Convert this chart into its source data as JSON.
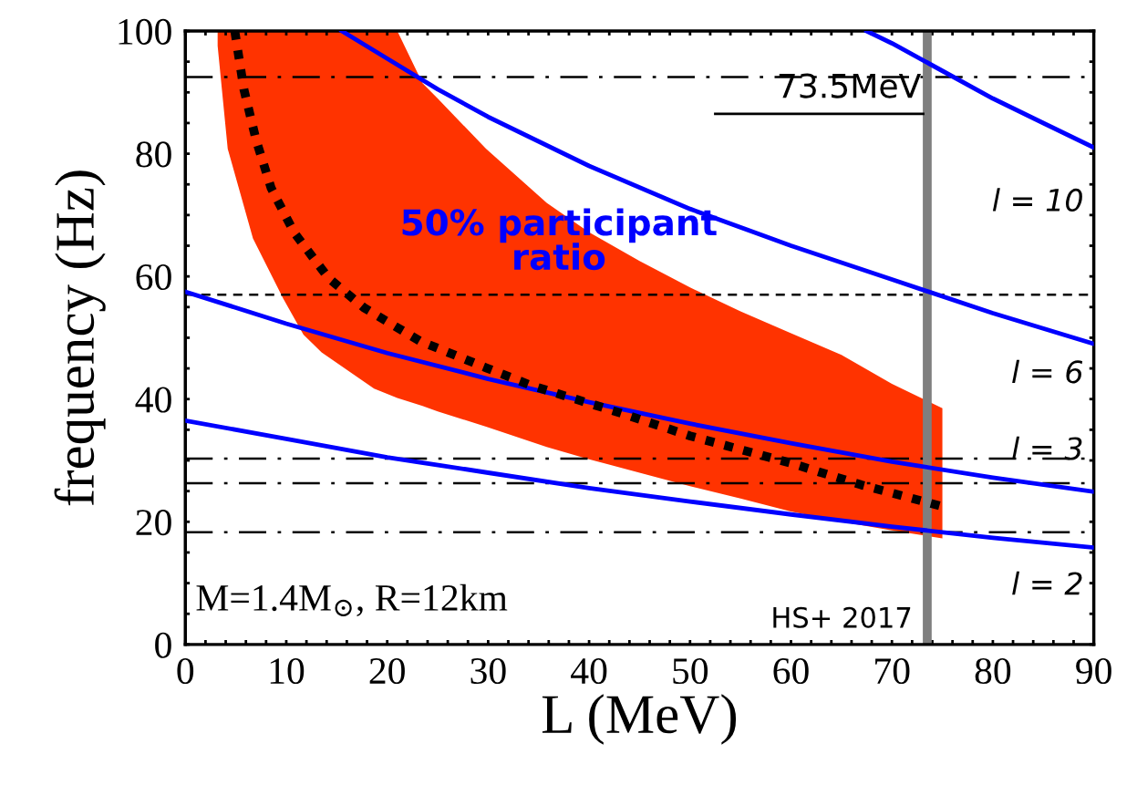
{
  "chart_data": {
    "type": "line",
    "xlabel": "L (MeV)",
    "ylabel": "frequency (Hz)",
    "xlim": [
      0,
      90
    ],
    "ylim": [
      0,
      100
    ],
    "xticks": [
      0,
      {
        "value": 2,
        "label": null
      },
      {
        "value": 4,
        "label": null
      },
      {
        "value": 6,
        "label": null
      },
      {
        "value": 8,
        "label": null
      },
      10,
      {
        "value": 12,
        "label": null
      },
      {
        "value": 14,
        "label": null
      },
      {
        "value": 16,
        "label": null
      },
      {
        "value": 18,
        "label": null
      },
      20,
      {
        "value": 22,
        "label": null
      },
      {
        "value": 24,
        "label": null
      },
      {
        "value": 26,
        "label": null
      },
      {
        "value": 28,
        "label": null
      },
      30,
      {
        "value": 32,
        "label": null
      },
      {
        "value": 34,
        "label": null
      },
      {
        "value": 36,
        "label": null
      },
      {
        "value": 38,
        "label": null
      },
      40,
      {
        "value": 42,
        "label": null
      },
      {
        "value": 44,
        "label": null
      },
      {
        "value": 46,
        "label": null
      },
      {
        "value": 48,
        "label": null
      },
      50,
      {
        "value": 52,
        "label": null
      },
      {
        "value": 54,
        "label": null
      },
      {
        "value": 56,
        "label": null
      },
      {
        "value": 58,
        "label": null
      },
      60,
      {
        "value": 62,
        "label": null
      },
      {
        "value": 64,
        "label": null
      },
      {
        "value": 66,
        "label": null
      },
      {
        "value": 68,
        "label": null
      },
      70,
      {
        "value": 72,
        "label": null
      },
      {
        "value": 74,
        "label": null
      },
      {
        "value": 76,
        "label": null
      },
      {
        "value": 78,
        "label": null
      },
      80,
      {
        "value": 82,
        "label": null
      },
      {
        "value": 84,
        "label": null
      },
      {
        "value": 86,
        "label": null
      },
      {
        "value": 88,
        "label": null
      },
      90
    ],
    "yticks": [
      0,
      {
        "value": 5,
        "label": null
      },
      {
        "value": 10,
        "label": null
      },
      {
        "value": 15,
        "label": null
      },
      20,
      {
        "value": 25,
        "label": null
      },
      {
        "value": 30,
        "label": null
      },
      {
        "value": 35,
        "label": null
      },
      40,
      {
        "value": 45,
        "label": null
      },
      {
        "value": 50,
        "label": null
      },
      {
        "value": 55,
        "label": null
      },
      60,
      {
        "value": 65,
        "label": null
      },
      {
        "value": 70,
        "label": null
      },
      {
        "value": 75,
        "label": null
      },
      80,
      {
        "value": 85,
        "label": null
      },
      {
        "value": 90,
        "label": null
      },
      {
        "value": 95,
        "label": null
      },
      100
    ],
    "series": [
      {
        "type": "line",
        "color": "#ff3300",
        "x": [
          3.2,
          4.2,
          6.7,
          9.7,
          11.7,
          13.5,
          18.7,
          21,
          23.5,
          25,
          29.8,
          35.8,
          40,
          45,
          50,
          55,
          59.9,
          65,
          70,
          75
        ],
        "values": [
          null,
          null,
          null,
          null,
          null,
          null,
          null,
          null,
          null,
          null,
          null,
          null,
          null,
          null,
          null,
          null,
          null,
          null,
          null,
          null
        ],
        "lower": [
          97.6,
          80.8,
          66.2,
          56.4,
          50.5,
          47.6,
          41.7,
          40.2,
          38.9,
          38,
          35.5,
          32.2,
          30.2,
          28,
          25.8,
          23.8,
          21.7,
          20,
          18.6,
          17.3
        ],
        "upper": [
          100,
          100,
          100,
          100,
          100,
          100,
          100,
          100,
          91.5,
          89,
          80.8,
          72,
          67.2,
          62.5,
          58.2,
          54.3,
          50.8,
          47.2,
          42.5,
          38.5
        ]
      },
      {
        "color": "#000000",
        "line_style": "dotted",
        "x": [
          4.9,
          5.8,
          7,
          8.5,
          10.8,
          14.2,
          17.7,
          23.2,
          29.8,
          34.3,
          43,
          50,
          59.9,
          67,
          75
        ],
        "values": [
          100,
          90.5,
          82.3,
          74.4,
          67.1,
          59.7,
          54.9,
          49.5,
          45.1,
          42.2,
          37.8,
          34,
          29.6,
          26,
          22.5
        ]
      },
      {
        "color": "#0000ff",
        "x": [
          0,
          10,
          20,
          30,
          40,
          50,
          60,
          70,
          80,
          90
        ],
        "values": [
          36.5,
          33.5,
          30.5,
          28,
          25.5,
          23.3,
          21.2,
          19.2,
          17.4,
          15.8
        ]
      },
      {
        "color": "#0000ff",
        "x": [
          0,
          10,
          20,
          30,
          40,
          50,
          60,
          70,
          80,
          90
        ],
        "values": [
          57.5,
          52.3,
          47.5,
          43.3,
          39.5,
          36,
          32.8,
          29.8,
          27.2,
          24.9
        ]
      },
      {
        "color": "#0000ff",
        "x": [
          15.5,
          20,
          25,
          30,
          40,
          50,
          60,
          70,
          80,
          90
        ],
        "values": [
          100,
          95.5,
          90.5,
          86,
          78,
          71,
          65,
          59.5,
          54,
          49
        ]
      },
      {
        "color": "#0000ff",
        "x": [
          67.5,
          70,
          75,
          80,
          85,
          90
        ],
        "values": [
          100,
          98,
          93.5,
          89,
          85,
          81
        ]
      }
    ],
    "ref_lines": [
      {
        "axis": "y",
        "value": 92.5,
        "line_style": "dashdot",
        "color": "#000000"
      },
      {
        "axis": "y",
        "value": 57,
        "line_style": "dashed",
        "color": "#000000"
      },
      {
        "axis": "y",
        "value": 30.3,
        "line_style": "dashdot",
        "color": "#000000"
      },
      {
        "axis": "y",
        "value": 26.3,
        "line_style": "dashdot",
        "color": "#000000"
      },
      {
        "axis": "y",
        "value": 18.3,
        "line_style": "dashdot",
        "color": "#000000"
      },
      {
        "axis": "x",
        "value": 73.5,
        "label": "73.5MeV",
        "color": "#7f7f7f",
        "line_style": "solid"
      }
    ],
    "annotations": [
      "50% participant\nratio",
      "l = 10",
      "l = 6",
      "l = 3",
      "l = 2",
      "M=1.4M$_{⊙}$, R=12km",
      "HS+ 2017"
    ],
    "grid": false,
    "legend": false
  }
}
